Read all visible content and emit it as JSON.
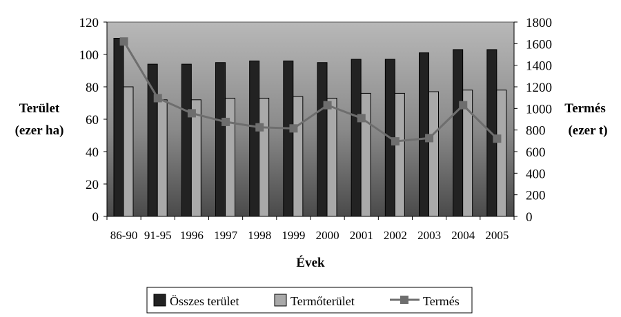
{
  "chart_data": {
    "type": "bar+line",
    "categories": [
      "86-90",
      "91-95",
      "1996",
      "1997",
      "1998",
      "1999",
      "2000",
      "2001",
      "2002",
      "2003",
      "2004",
      "2005"
    ],
    "series": [
      {
        "name": "Összes terület",
        "type": "bar",
        "axis": "left",
        "values": [
          110,
          94,
          94,
          95,
          96,
          96,
          95,
          97,
          97,
          101,
          103,
          103
        ],
        "color": "#222222"
      },
      {
        "name": "Termőterület",
        "type": "bar",
        "axis": "left",
        "values": [
          80,
          72,
          72,
          73,
          73,
          74,
          73,
          76,
          76,
          77,
          78,
          78
        ],
        "color": "#a9a9a9"
      },
      {
        "name": "Termés",
        "type": "line",
        "axis": "right",
        "values": [
          1620,
          1095,
          955,
          875,
          825,
          815,
          1030,
          910,
          695,
          725,
          1030,
          720
        ],
        "color": "#6e6e6e"
      }
    ],
    "xlabel": "Évek",
    "ylabel_left": [
      "Terület",
      "(ezer ha)"
    ],
    "ylabel_right": [
      "Termés",
      "(ezer t)"
    ],
    "ylim_left": [
      0,
      120
    ],
    "ylim_right": [
      0,
      1800
    ],
    "yticks_left": [
      "0",
      "20",
      "40",
      "60",
      "80",
      "100",
      "120"
    ],
    "yticks_right": [
      "0",
      "200",
      "400",
      "600",
      "800",
      "1000",
      "1200",
      "1400",
      "1600",
      "1800"
    ],
    "legend_position": "bottom"
  }
}
